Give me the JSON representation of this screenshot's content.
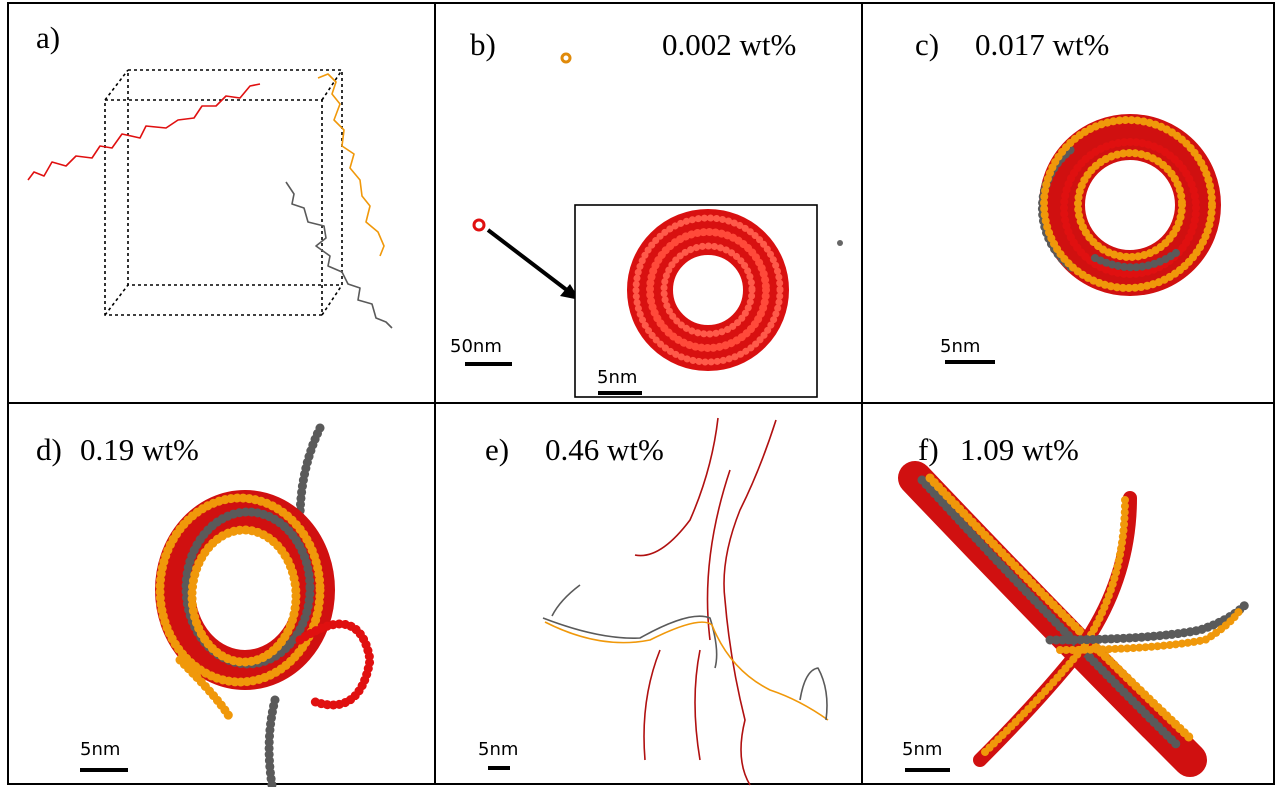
{
  "panels": [
    {
      "label": "a)"
    },
    {
      "label": "b)",
      "concentration": "0.002 wt%",
      "scale_bar": "50nm",
      "inset_scale_bar": "5nm"
    },
    {
      "label": "c)",
      "concentration": "0.017 wt%",
      "scale_bar": "5nm"
    },
    {
      "label": "d)",
      "concentration": "0.19 wt%",
      "scale_bar": "5nm"
    },
    {
      "label": "e)",
      "concentration": "0.46 wt%",
      "scale_bar": "5nm"
    },
    {
      "label": "f)",
      "concentration": "1.09 wt%",
      "scale_bar": "5nm"
    }
  ]
}
